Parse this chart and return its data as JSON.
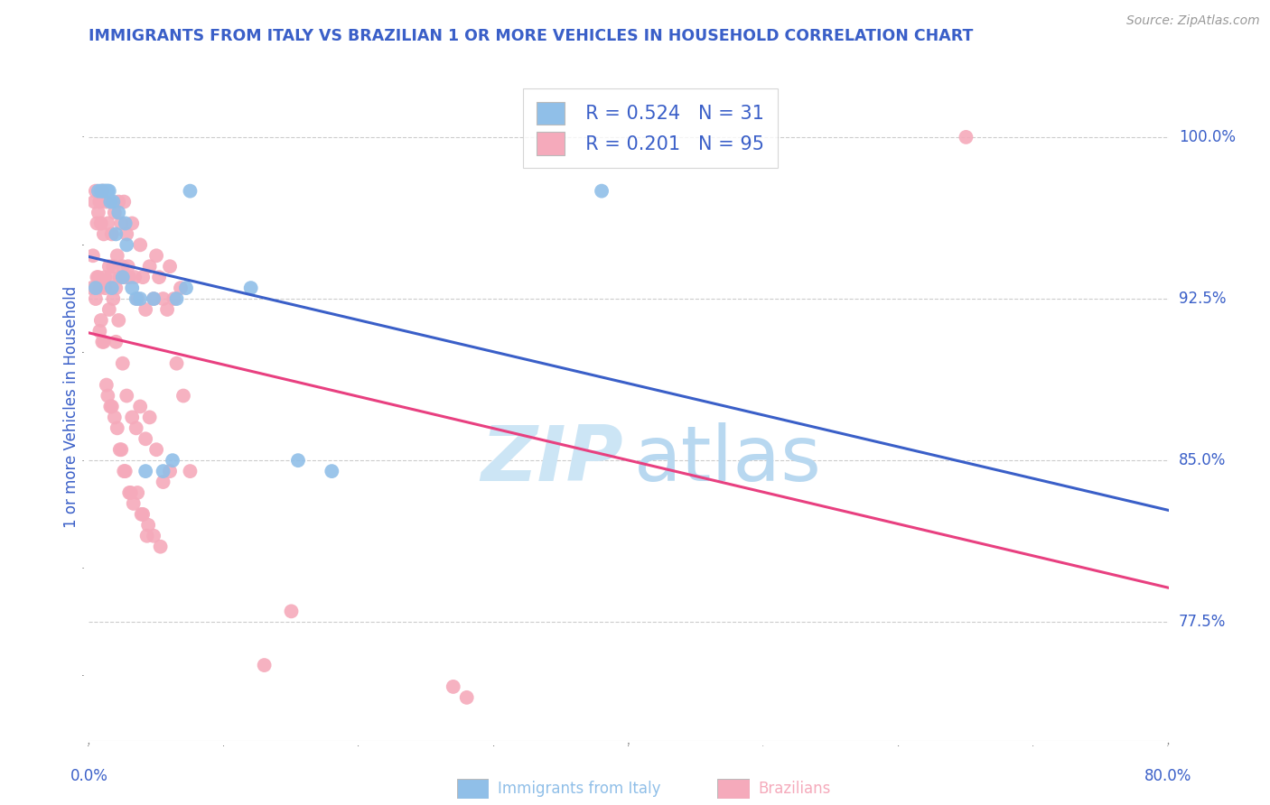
{
  "title": "IMMIGRANTS FROM ITALY VS BRAZILIAN 1 OR MORE VEHICLES IN HOUSEHOLD CORRELATION CHART",
  "source": "Source: ZipAtlas.com",
  "ylabel": "1 or more Vehicles in Household",
  "ytick_labels": [
    "100.0%",
    "92.5%",
    "85.0%",
    "77.5%"
  ],
  "ytick_values": [
    1.0,
    0.925,
    0.85,
    0.775
  ],
  "xlim": [
    0.0,
    0.8
  ],
  "ylim": [
    0.72,
    1.03
  ],
  "legend_italy_R": "0.524",
  "legend_italy_N": "31",
  "legend_brazil_R": "0.201",
  "legend_brazil_N": "95",
  "italy_color": "#90bfe8",
  "brazil_color": "#f5aabb",
  "italy_line_color": "#3a5fc8",
  "brazil_line_color": "#e84080",
  "watermark_zip_color": "#cce5f5",
  "watermark_atlas_color": "#b8d8f0",
  "title_color": "#3a5fc8",
  "axis_label_color": "#3a5fc8",
  "source_color": "#999999",
  "italy_scatter_x": [
    0.005,
    0.007,
    0.009,
    0.01,
    0.011,
    0.012,
    0.013,
    0.014,
    0.015,
    0.016,
    0.017,
    0.018,
    0.02,
    0.022,
    0.025,
    0.027,
    0.028,
    0.032,
    0.035,
    0.038,
    0.042,
    0.048,
    0.055,
    0.062,
    0.065,
    0.072,
    0.075,
    0.12,
    0.155,
    0.18,
    0.38
  ],
  "italy_scatter_y": [
    0.93,
    0.975,
    0.975,
    0.975,
    0.975,
    0.975,
    0.975,
    0.975,
    0.975,
    0.97,
    0.93,
    0.97,
    0.955,
    0.965,
    0.935,
    0.96,
    0.95,
    0.93,
    0.925,
    0.925,
    0.845,
    0.925,
    0.845,
    0.85,
    0.925,
    0.93,
    0.975,
    0.93,
    0.85,
    0.845,
    0.975
  ],
  "brazil_scatter_x": [
    0.002,
    0.004,
    0.005,
    0.006,
    0.007,
    0.008,
    0.009,
    0.01,
    0.011,
    0.012,
    0.013,
    0.014,
    0.015,
    0.016,
    0.017,
    0.018,
    0.019,
    0.02,
    0.021,
    0.022,
    0.023,
    0.024,
    0.025,
    0.026,
    0.027,
    0.028,
    0.029,
    0.03,
    0.032,
    0.034,
    0.036,
    0.038,
    0.04,
    0.042,
    0.045,
    0.048,
    0.05,
    0.052,
    0.055,
    0.058,
    0.06,
    0.063,
    0.065,
    0.068,
    0.07,
    0.075,
    0.008,
    0.01,
    0.012,
    0.015,
    0.018,
    0.02,
    0.022,
    0.025,
    0.028,
    0.032,
    0.035,
    0.038,
    0.042,
    0.045,
    0.05,
    0.055,
    0.06,
    0.005,
    0.007,
    0.009,
    0.011,
    0.014,
    0.017,
    0.019,
    0.021,
    0.024,
    0.027,
    0.03,
    0.033,
    0.036,
    0.04,
    0.044,
    0.048,
    0.053,
    0.003,
    0.006,
    0.008,
    0.013,
    0.016,
    0.023,
    0.026,
    0.031,
    0.039,
    0.043,
    0.13,
    0.15,
    0.27,
    0.28,
    0.65
  ],
  "brazil_scatter_y": [
    0.93,
    0.97,
    0.975,
    0.96,
    0.965,
    0.97,
    0.96,
    0.975,
    0.955,
    0.935,
    0.97,
    0.96,
    0.94,
    0.935,
    0.955,
    0.94,
    0.965,
    0.93,
    0.945,
    0.97,
    0.935,
    0.96,
    0.94,
    0.97,
    0.935,
    0.955,
    0.94,
    0.935,
    0.96,
    0.935,
    0.925,
    0.95,
    0.935,
    0.92,
    0.94,
    0.925,
    0.945,
    0.935,
    0.925,
    0.92,
    0.94,
    0.925,
    0.895,
    0.93,
    0.88,
    0.845,
    0.93,
    0.905,
    0.93,
    0.92,
    0.925,
    0.905,
    0.915,
    0.895,
    0.88,
    0.87,
    0.865,
    0.875,
    0.86,
    0.87,
    0.855,
    0.84,
    0.845,
    0.925,
    0.935,
    0.915,
    0.905,
    0.88,
    0.875,
    0.87,
    0.865,
    0.855,
    0.845,
    0.835,
    0.83,
    0.835,
    0.825,
    0.82,
    0.815,
    0.81,
    0.945,
    0.935,
    0.91,
    0.885,
    0.875,
    0.855,
    0.845,
    0.835,
    0.825,
    0.815,
    0.755,
    0.78,
    0.745,
    0.74,
    1.0
  ]
}
